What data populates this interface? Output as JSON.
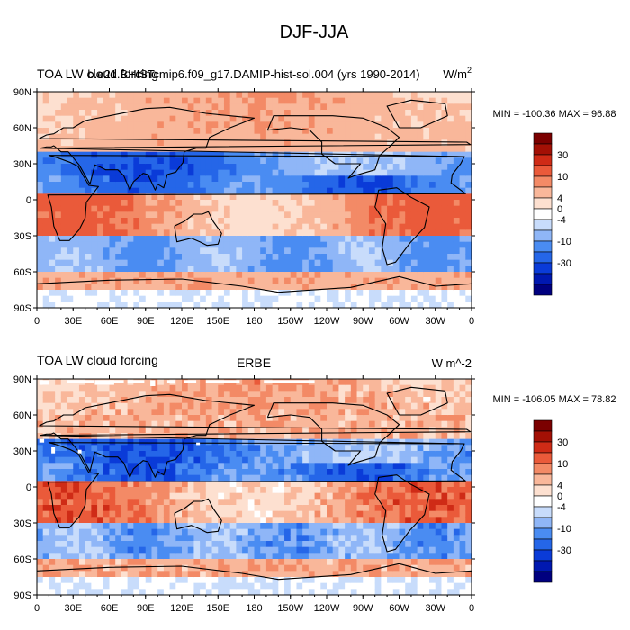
{
  "figure_title": "DJF-JJA",
  "colors": {
    "levels": [
      "#00007f",
      "#0018b0",
      "#0a3bd8",
      "#2566e8",
      "#4a8cf2",
      "#8fb6f7",
      "#c8dcfb",
      "#ffffff",
      "#fde0d0",
      "#f9b79a",
      "#f38a66",
      "#ea5a3a",
      "#cf2b16",
      "#a31005",
      "#7b0000"
    ]
  },
  "chart_data": [
    {
      "type": "heatmap",
      "title_left": "TOA LW cloud forcing",
      "title_center": "b.e21.BHISTcmip6.f09_g17.DAMIP-hist-sol.004 (yrs 1990-2014)",
      "title_right": "W/m",
      "title_right_sup": "2",
      "min_max_label": "MIN = -100.36 MAX =  96.88",
      "min": -100.36,
      "max": 96.88,
      "colorbar_levels": [
        -50,
        -40,
        -30,
        -20,
        -15,
        -10,
        -8,
        -6,
        -4,
        -2,
        0,
        2,
        4,
        6,
        8,
        10,
        15,
        20,
        30,
        40,
        50
      ],
      "colorbar_ticks": [
        "-30",
        "-10",
        "-4",
        "0",
        "4",
        "10",
        "30"
      ],
      "xaxis": {
        "range": [
          0,
          360
        ],
        "tick_labels": [
          "0",
          "30E",
          "60E",
          "90E",
          "120E",
          "150E",
          "180",
          "150W",
          "120W",
          "90W",
          "60W",
          "30W",
          "0"
        ]
      },
      "yaxis": {
        "range": [
          -90,
          90
        ],
        "tick_labels": [
          "90S",
          "60S",
          "30S",
          "0",
          "30N",
          "60N",
          "90N"
        ]
      },
      "missing_data": false
    },
    {
      "type": "heatmap",
      "title_left": "TOA LW cloud forcing",
      "title_center": "ERBE",
      "title_right": "W m^-2",
      "title_right_sup": "",
      "min_max_label": "MIN = -106.05 MAX =  78.82",
      "min": -106.05,
      "max": 78.82,
      "colorbar_levels": [
        -50,
        -40,
        -30,
        -20,
        -15,
        -10,
        -8,
        -6,
        -4,
        -2,
        0,
        2,
        4,
        6,
        8,
        10,
        15,
        20,
        30,
        40,
        50
      ],
      "colorbar_ticks": [
        "-30",
        "-10",
        "-4",
        "0",
        "4",
        "10",
        "30"
      ],
      "xaxis": {
        "range": [
          0,
          360
        ],
        "tick_labels": [
          "0",
          "30E",
          "60E",
          "90E",
          "120E",
          "150E",
          "180",
          "150W",
          "120W",
          "90W",
          "60W",
          "30W",
          "0"
        ]
      },
      "yaxis": {
        "range": [
          -90,
          90
        ],
        "tick_labels": [
          "90S",
          "60S",
          "30S",
          "0",
          "30N",
          "60N",
          "90N"
        ]
      },
      "missing_data": true
    }
  ]
}
